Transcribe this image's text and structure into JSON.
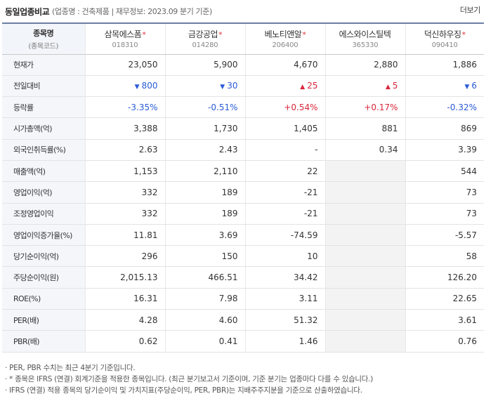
{
  "header": {
    "title": "동일업종비교",
    "subtitle": "(업종명 : 건축제품 | 재무정보: 2023.09 분기 기준)",
    "more_label": "더보기"
  },
  "table": {
    "corner_label": "종목명",
    "corner_sublabel": "(종목코드)",
    "companies": [
      {
        "name": "삼목에스폼",
        "star": "*",
        "code": "018310"
      },
      {
        "name": "금강공업",
        "star": "*",
        "code": "014280"
      },
      {
        "name": "베노티앤알",
        "star": "*",
        "code": "206400"
      },
      {
        "name": "에스와이스틸텍",
        "star": "",
        "code": "365330"
      },
      {
        "name": "덕신하우징",
        "star": "*",
        "code": "090410"
      }
    ],
    "rows": [
      {
        "label": "현재가",
        "values": [
          "23,050",
          "5,900",
          "4,670",
          "2,880",
          "1,886"
        ]
      },
      {
        "label": "전일대비",
        "values": [
          "▼ 800",
          "▼ 30",
          "▲ 25",
          "▲ 5",
          "▼ 6"
        ],
        "colors": [
          "blue",
          "blue",
          "red",
          "red",
          "blue"
        ]
      },
      {
        "label": "등락률",
        "values": [
          "-3.35%",
          "-0.51%",
          "+0.54%",
          "+0.17%",
          "-0.32%"
        ],
        "colors": [
          "blue",
          "blue",
          "red",
          "red",
          "blue"
        ]
      },
      {
        "label": "시가총액(억)",
        "values": [
          "3,388",
          "1,730",
          "1,405",
          "881",
          "869"
        ]
      },
      {
        "label": "외국인취득률(%)",
        "values": [
          "2.63",
          "2.43",
          "-",
          "0.34",
          "3.39"
        ]
      },
      {
        "label": "매출액(억)",
        "values": [
          "1,153",
          "2,110",
          "22",
          "",
          "544"
        ]
      },
      {
        "label": "영업이익(억)",
        "values": [
          "332",
          "189",
          "-21",
          "",
          "73"
        ]
      },
      {
        "label": "조정영업이익",
        "values": [
          "332",
          "189",
          "-21",
          "",
          "73"
        ]
      },
      {
        "label": "영업이익증가율(%)",
        "values": [
          "11.81",
          "3.69",
          "-74.59",
          "",
          "-5.57"
        ]
      },
      {
        "label": "당기순이익(억)",
        "values": [
          "296",
          "150",
          "10",
          "",
          "58"
        ]
      },
      {
        "label": "주당순이익(원)",
        "values": [
          "2,015.13",
          "466.51",
          "34.42",
          "",
          "126.20"
        ]
      },
      {
        "label": "ROE(%)",
        "values": [
          "16.31",
          "7.98",
          "3.11",
          "",
          "22.65"
        ]
      },
      {
        "label": "PER(배)",
        "values": [
          "4.28",
          "4.60",
          "51.32",
          "",
          "3.61"
        ]
      },
      {
        "label": "PBR(배)",
        "values": [
          "0.62",
          "0.41",
          "1.46",
          "",
          "0.76"
        ]
      }
    ]
  },
  "notes": [
    "· PER, PBR 수치는 최근 4분기 기준입니다.",
    "· * 종목은 IFRS (연결) 회계기준을 적용한 종목입니다. (최근 분기보고서 기준이며, 기준 분기는 업종마다 다를 수 있습니다.)",
    "· IFRS (연결) 적용 종목의 당기순이익 및 가치지표(주당순이익, PER, PBR)는 지배주주지분을 기준으로 산출하였습니다."
  ],
  "colors": {
    "up": "#d9263a",
    "down": "#2a5bd7",
    "header_border": "#6b7fa6"
  }
}
